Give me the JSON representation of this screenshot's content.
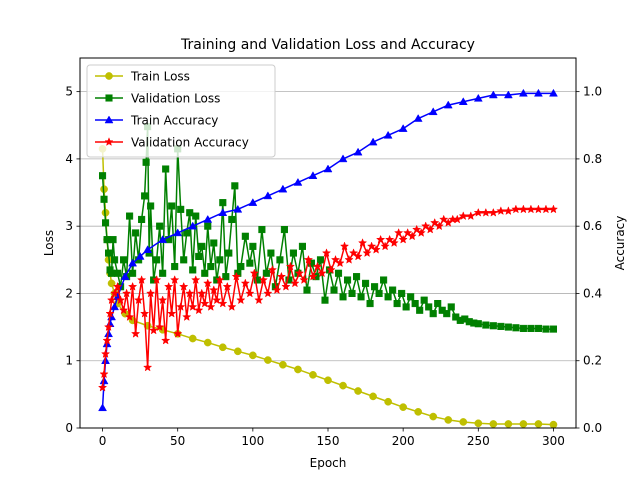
{
  "chart_data": {
    "type": "line",
    "title": "Training and Validation Loss and Accuracy",
    "xlabel": "Epoch",
    "ylabel": "Loss",
    "ylabel_right": "Accuracy",
    "xlim": [
      -15,
      315
    ],
    "ylim": [
      0,
      5.5
    ],
    "ylim_right": [
      0,
      1.1
    ],
    "xticks": [
      0,
      50,
      100,
      150,
      200,
      250,
      300
    ],
    "yticks": [
      0,
      1,
      2,
      3,
      4,
      5
    ],
    "yticks_right": [
      0.0,
      0.2,
      0.4,
      0.6,
      0.8,
      1.0
    ],
    "grid": "right-axis horizontal",
    "legend_position": "top-left",
    "series": [
      {
        "name": "Train Loss",
        "axis": "left",
        "color": "#bfbf00",
        "marker": "circle",
        "x": [
          0,
          1,
          2,
          3,
          4,
          5,
          6,
          8,
          10,
          15,
          20,
          30,
          40,
          50,
          60,
          70,
          80,
          90,
          100,
          110,
          120,
          130,
          140,
          150,
          160,
          170,
          180,
          190,
          200,
          210,
          220,
          230,
          240,
          250,
          260,
          270,
          280,
          290,
          300
        ],
        "values": [
          4.15,
          3.55,
          3.2,
          2.8,
          2.5,
          2.3,
          2.15,
          2.0,
          1.85,
          1.7,
          1.6,
          1.52,
          1.46,
          1.4,
          1.33,
          1.27,
          1.2,
          1.14,
          1.08,
          1.01,
          0.94,
          0.87,
          0.79,
          0.71,
          0.63,
          0.55,
          0.47,
          0.39,
          0.31,
          0.24,
          0.17,
          0.12,
          0.09,
          0.07,
          0.06,
          0.06,
          0.06,
          0.06,
          0.05
        ]
      },
      {
        "name": "Validation Loss",
        "axis": "left",
        "color": "#008000",
        "marker": "square",
        "x": [
          0,
          1,
          2,
          3,
          4,
          5,
          6,
          7,
          8,
          10,
          12,
          14,
          16,
          18,
          20,
          22,
          24,
          26,
          28,
          29,
          30,
          31,
          32,
          34,
          36,
          38,
          40,
          42,
          44,
          46,
          48,
          50,
          52,
          54,
          56,
          58,
          60,
          62,
          64,
          66,
          68,
          70,
          72,
          74,
          76,
          78,
          80,
          82,
          84,
          86,
          88,
          90,
          92,
          95,
          98,
          100,
          103,
          106,
          109,
          112,
          115,
          118,
          121,
          124,
          127,
          130,
          133,
          136,
          139,
          142,
          145,
          148,
          151,
          154,
          157,
          160,
          163,
          166,
          169,
          172,
          175,
          178,
          181,
          184,
          187,
          190,
          193,
          196,
          199,
          202,
          205,
          208,
          211,
          214,
          217,
          220,
          223,
          226,
          229,
          232,
          235,
          238,
          241,
          244,
          247,
          250,
          255,
          260,
          265,
          270,
          275,
          280,
          285,
          290,
          295,
          300
        ],
        "values": [
          3.75,
          3.4,
          3.05,
          2.8,
          2.6,
          2.35,
          2.3,
          2.8,
          2.5,
          2.3,
          2.1,
          2.5,
          2.25,
          3.15,
          2.3,
          2.9,
          2.5,
          3.1,
          3.45,
          3.95,
          4.48,
          2.6,
          3.3,
          2.2,
          2.5,
          3.0,
          2.3,
          3.85,
          2.8,
          3.3,
          2.4,
          4.15,
          3.25,
          2.5,
          2.9,
          3.2,
          2.35,
          3.15,
          2.55,
          2.7,
          2.3,
          3.0,
          2.4,
          2.75,
          2.2,
          2.5,
          3.35,
          2.25,
          2.6,
          3.1,
          3.6,
          2.3,
          2.4,
          2.85,
          2.45,
          2.7,
          2.2,
          2.95,
          2.3,
          2.6,
          2.1,
          2.5,
          2.95,
          2.2,
          2.6,
          2.3,
          2.7,
          2.05,
          2.45,
          2.25,
          2.5,
          1.9,
          2.35,
          2.05,
          2.3,
          1.95,
          2.2,
          2.0,
          2.25,
          1.95,
          2.15,
          1.85,
          2.1,
          2.0,
          2.2,
          1.95,
          2.05,
          1.85,
          2.0,
          1.8,
          1.95,
          1.85,
          1.75,
          1.9,
          1.8,
          1.7,
          1.85,
          1.75,
          1.7,
          1.8,
          1.65,
          1.6,
          1.62,
          1.58,
          1.56,
          1.55,
          1.53,
          1.52,
          1.51,
          1.5,
          1.49,
          1.48,
          1.48,
          1.48,
          1.47,
          1.47
        ]
      },
      {
        "name": "Train Accuracy",
        "axis": "right",
        "color": "#0000ff",
        "marker": "triangle",
        "x": [
          0,
          1,
          2,
          3,
          4,
          5,
          6,
          8,
          10,
          15,
          20,
          25,
          30,
          40,
          50,
          60,
          70,
          80,
          90,
          100,
          110,
          120,
          130,
          140,
          150,
          160,
          170,
          180,
          190,
          200,
          210,
          220,
          230,
          240,
          250,
          260,
          270,
          280,
          290,
          300
        ],
        "values": [
          0.06,
          0.14,
          0.2,
          0.25,
          0.28,
          0.31,
          0.33,
          0.36,
          0.39,
          0.45,
          0.49,
          0.51,
          0.53,
          0.56,
          0.58,
          0.6,
          0.62,
          0.64,
          0.65,
          0.67,
          0.69,
          0.71,
          0.73,
          0.75,
          0.77,
          0.8,
          0.82,
          0.85,
          0.87,
          0.89,
          0.92,
          0.94,
          0.96,
          0.97,
          0.98,
          0.99,
          0.99,
          0.995,
          0.995,
          0.995
        ]
      },
      {
        "name": "Validation Accuracy",
        "axis": "right",
        "color": "#ff0000",
        "marker": "star",
        "x": [
          0,
          1,
          2,
          3,
          4,
          5,
          6,
          8,
          10,
          12,
          14,
          16,
          18,
          20,
          22,
          24,
          26,
          28,
          30,
          32,
          34,
          36,
          38,
          40,
          42,
          44,
          46,
          48,
          50,
          52,
          54,
          56,
          58,
          60,
          62,
          64,
          66,
          68,
          70,
          72,
          74,
          76,
          78,
          80,
          83,
          86,
          89,
          92,
          95,
          98,
          101,
          104,
          107,
          110,
          113,
          116,
          119,
          122,
          125,
          128,
          131,
          134,
          137,
          140,
          143,
          146,
          149,
          152,
          155,
          158,
          161,
          164,
          167,
          170,
          173,
          176,
          179,
          182,
          185,
          188,
          191,
          194,
          197,
          200,
          203,
          206,
          209,
          212,
          215,
          218,
          221,
          224,
          227,
          230,
          233,
          236,
          240,
          245,
          250,
          255,
          260,
          265,
          270,
          275,
          280,
          285,
          290,
          295,
          300
        ],
        "values": [
          0.12,
          0.16,
          0.22,
          0.26,
          0.3,
          0.34,
          0.38,
          0.4,
          0.42,
          0.38,
          0.35,
          0.4,
          0.33,
          0.42,
          0.28,
          0.38,
          0.44,
          0.34,
          0.18,
          0.4,
          0.29,
          0.44,
          0.3,
          0.38,
          0.26,
          0.42,
          0.34,
          0.44,
          0.28,
          0.36,
          0.42,
          0.33,
          0.4,
          0.36,
          0.44,
          0.35,
          0.4,
          0.37,
          0.43,
          0.36,
          0.41,
          0.38,
          0.44,
          0.37,
          0.42,
          0.36,
          0.45,
          0.38,
          0.43,
          0.4,
          0.46,
          0.38,
          0.44,
          0.4,
          0.47,
          0.41,
          0.45,
          0.42,
          0.48,
          0.43,
          0.46,
          0.44,
          0.5,
          0.45,
          0.48,
          0.46,
          0.52,
          0.47,
          0.5,
          0.49,
          0.54,
          0.5,
          0.52,
          0.51,
          0.55,
          0.52,
          0.54,
          0.53,
          0.56,
          0.54,
          0.56,
          0.55,
          0.58,
          0.56,
          0.58,
          0.57,
          0.59,
          0.58,
          0.6,
          0.59,
          0.61,
          0.6,
          0.62,
          0.61,
          0.62,
          0.62,
          0.63,
          0.63,
          0.64,
          0.64,
          0.64,
          0.645,
          0.645,
          0.65,
          0.65,
          0.65,
          0.65,
          0.65,
          0.65
        ]
      }
    ]
  }
}
